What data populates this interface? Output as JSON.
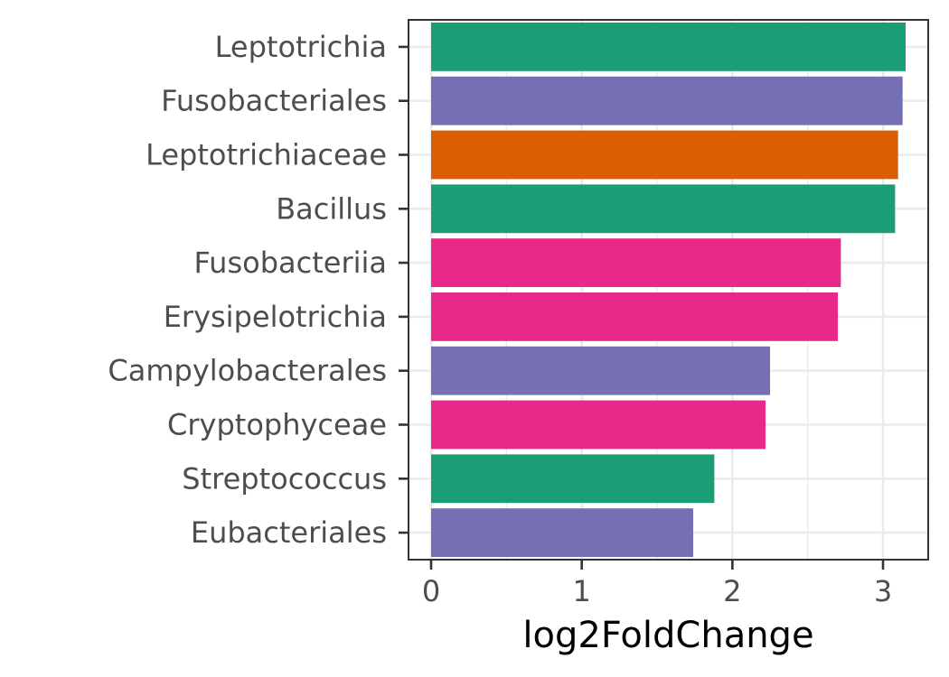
{
  "chart_data": {
    "type": "bar",
    "orientation": "horizontal",
    "categories": [
      "Leptotrichia",
      "Fusobacteriales",
      "Leptotrichiaceae",
      "Bacillus",
      "Fusobacteriia",
      "Erysipelotrichia",
      "Campylobacterales",
      "Cryptophyceae",
      "Streptococcus",
      "Eubacteriales"
    ],
    "values": [
      3.15,
      3.13,
      3.1,
      3.08,
      2.72,
      2.7,
      2.25,
      2.22,
      1.88,
      1.74
    ],
    "bar_colors": [
      "#1b9e77",
      "#7570b3",
      "#d95f02",
      "#1b9e77",
      "#e7298a",
      "#e7298a",
      "#7570b3",
      "#e7298a",
      "#1b9e77",
      "#7570b3"
    ],
    "xlabel": "log2FoldChange",
    "ylabel": "",
    "title": "",
    "xlim": [
      -0.15,
      3.3
    ],
    "xticks": [
      0,
      1,
      2,
      3
    ],
    "grid": true,
    "legend": "none"
  }
}
